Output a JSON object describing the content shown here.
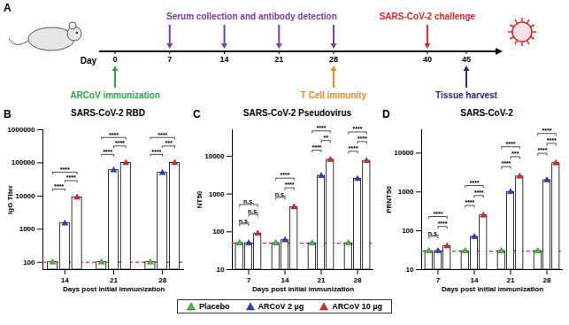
{
  "timeline": {
    "panel": "A",
    "axis_label": "Day",
    "ticks": [
      0,
      7,
      14,
      21,
      28,
      40,
      45
    ],
    "above": [
      {
        "label": "Serum collection and antibody detection",
        "days": [
          7,
          14,
          21,
          28
        ],
        "color": "#7b3fa8"
      },
      {
        "label": "SARS-CoV-2 challenge",
        "days": [
          40
        ],
        "color": "#e8262a"
      }
    ],
    "below": [
      {
        "label": "ARCoV immunization",
        "days": [
          0
        ],
        "color": "#2aa84a"
      },
      {
        "label": "T Cell immunity",
        "days": [
          28
        ],
        "color": "#f08a24"
      },
      {
        "label": "Tissue harvest",
        "days": [
          45
        ],
        "color": "#1c2f80"
      }
    ]
  },
  "chart_data": [
    {
      "panel": "B",
      "type": "bar",
      "title": "SARS-CoV-2 RBD",
      "log": "y",
      "xlabel": "Days post initial immunization",
      "ylabel": "IgG Titer",
      "categories": [
        14,
        21,
        28
      ],
      "ylim": [
        60,
        1000000
      ],
      "yticks": [
        100,
        1000,
        10000,
        100000,
        1000000
      ],
      "series": [
        {
          "name": "Placebo",
          "color": "#3ec83e",
          "marker": "triangle",
          "values": [
            100,
            100,
            100
          ]
        },
        {
          "name": "ARCoV 2 µg",
          "color": "#2b3bd6",
          "marker": "triangle",
          "values": [
            1500,
            60000,
            50000
          ]
        },
        {
          "name": "ARCoV 10 µg",
          "color": "#e8262a",
          "marker": "triangle",
          "values": [
            9000,
            100000,
            100000
          ]
        }
      ],
      "limit_of_detection": {
        "value": 100,
        "color": "#e8262a",
        "line_style": "dashed"
      },
      "comparisons": [
        {
          "category": 14,
          "from": "Placebo",
          "to": "ARCoV 2 µg",
          "label": "****"
        },
        {
          "category": 14,
          "from": "ARCoV 2 µg",
          "to": "ARCoV 10 µg",
          "label": "****"
        },
        {
          "category": 14,
          "from": "Placebo",
          "to": "ARCoV 10 µg",
          "label": "****"
        },
        {
          "category": 21,
          "from": "Placebo",
          "to": "ARCoV 2 µg",
          "label": "****"
        },
        {
          "category": 21,
          "from": "ARCoV 2 µg",
          "to": "ARCoV 10 µg",
          "label": "****"
        },
        {
          "category": 21,
          "from": "Placebo",
          "to": "ARCoV 10 µg",
          "label": "****"
        },
        {
          "category": 28,
          "from": "Placebo",
          "to": "ARCoV 2 µg",
          "label": "****"
        },
        {
          "category": 28,
          "from": "ARCoV 2 µg",
          "to": "ARCoV 10 µg",
          "label": "***"
        },
        {
          "category": 28,
          "from": "Placebo",
          "to": "ARCoV 10 µg",
          "label": "****"
        }
      ]
    },
    {
      "panel": "C",
      "type": "bar",
      "title": "SARS-CoV-2 Pseudovirus",
      "log": "y",
      "xlabel": "Days post initial immunization",
      "ylabel": "NT50",
      "categories": [
        7,
        14,
        21,
        28
      ],
      "ylim": [
        10,
        50000
      ],
      "yticks": [
        10,
        100,
        1000,
        10000
      ],
      "series": [
        {
          "name": "Placebo",
          "color": "#3ec83e",
          "marker": "triangle",
          "values": [
            50,
            50,
            50,
            50
          ]
        },
        {
          "name": "ARCoV 2 µg",
          "color": "#2b3bd6",
          "marker": "triangle",
          "values": [
            50,
            60,
            3000,
            2500
          ]
        },
        {
          "name": "ARCoV 10 µg",
          "color": "#e8262a",
          "marker": "triangle",
          "values": [
            90,
            450,
            8000,
            7500
          ]
        }
      ],
      "limit_of_detection": {
        "value": 50,
        "color": "#e8262a",
        "line_style": "dashed"
      },
      "comparisons": [
        {
          "category": 7,
          "from": "Placebo",
          "to": "ARCoV 2 µg",
          "label": "n.s."
        },
        {
          "category": 7,
          "from": "ARCoV 2 µg",
          "to": "ARCoV 10 µg",
          "label": "n.s."
        },
        {
          "category": 7,
          "from": "Placebo",
          "to": "ARCoV 10 µg",
          "label": "n.s."
        },
        {
          "category": 14,
          "from": "Placebo",
          "to": "ARCoV 2 µg",
          "label": "n.s."
        },
        {
          "category": 14,
          "from": "ARCoV 2 µg",
          "to": "ARCoV 10 µg",
          "label": "****"
        },
        {
          "category": 14,
          "from": "Placebo",
          "to": "ARCoV 10 µg",
          "label": "****"
        },
        {
          "category": 21,
          "from": "Placebo",
          "to": "ARCoV 2 µg",
          "label": "****"
        },
        {
          "category": 21,
          "from": "ARCoV 2 µg",
          "to": "ARCoV 10 µg",
          "label": "**"
        },
        {
          "category": 21,
          "from": "Placebo",
          "to": "ARCoV 10 µg",
          "label": "****"
        },
        {
          "category": 28,
          "from": "Placebo",
          "to": "ARCoV 2 µg",
          "label": "****"
        },
        {
          "category": 28,
          "from": "ARCoV 2 µg",
          "to": "ARCoV 10 µg",
          "label": "****"
        },
        {
          "category": 28,
          "from": "Placebo",
          "to": "ARCoV 10 µg",
          "label": "****"
        }
      ]
    },
    {
      "panel": "D",
      "type": "bar",
      "title": "SARS-CoV-2",
      "log": "y",
      "xlabel": "Days post initial immunization",
      "ylabel": "PRNT50",
      "categories": [
        7,
        14,
        21,
        28
      ],
      "ylim": [
        10,
        40000
      ],
      "yticks": [
        10,
        100,
        1000,
        10000
      ],
      "series": [
        {
          "name": "Placebo",
          "color": "#3ec83e",
          "marker": "triangle",
          "values": [
            30,
            30,
            30,
            30
          ]
        },
        {
          "name": "ARCoV 2 µg",
          "color": "#2b3bd6",
          "marker": "triangle",
          "values": [
            30,
            70,
            1000,
            2000
          ]
        },
        {
          "name": "ARCoV 10 µg",
          "color": "#e8262a",
          "marker": "triangle",
          "values": [
            40,
            250,
            2500,
            5500
          ]
        }
      ],
      "limit_of_detection": {
        "value": 30,
        "color": "#e8262a",
        "line_style": "dashed"
      },
      "comparisons": [
        {
          "category": 7,
          "from": "Placebo",
          "to": "ARCoV 2 µg",
          "label": "n.s."
        },
        {
          "category": 7,
          "from": "ARCoV 2 µg",
          "to": "ARCoV 10 µg",
          "label": "****"
        },
        {
          "category": 7,
          "from": "Placebo",
          "to": "ARCoV 10 µg",
          "label": "****"
        },
        {
          "category": 14,
          "from": "Placebo",
          "to": "ARCoV 2 µg",
          "label": "****"
        },
        {
          "category": 14,
          "from": "ARCoV 2 µg",
          "to": "ARCoV 10 µg",
          "label": "****"
        },
        {
          "category": 14,
          "from": "Placebo",
          "to": "ARCoV 10 µg",
          "label": "****"
        },
        {
          "category": 21,
          "from": "Placebo",
          "to": "ARCoV 2 µg",
          "label": "****"
        },
        {
          "category": 21,
          "from": "ARCoV 2 µg",
          "to": "ARCoV 10 µg",
          "label": "***"
        },
        {
          "category": 21,
          "from": "Placebo",
          "to": "ARCoV 10 µg",
          "label": "****"
        },
        {
          "category": 28,
          "from": "Placebo",
          "to": "ARCoV 2 µg",
          "label": "****"
        },
        {
          "category": 28,
          "from": "ARCoV 2 µg",
          "to": "ARCoV 10 µg",
          "label": "****"
        },
        {
          "category": 28,
          "from": "Placebo",
          "to": "ARCoV 10 µg",
          "label": "****"
        }
      ]
    }
  ]
}
